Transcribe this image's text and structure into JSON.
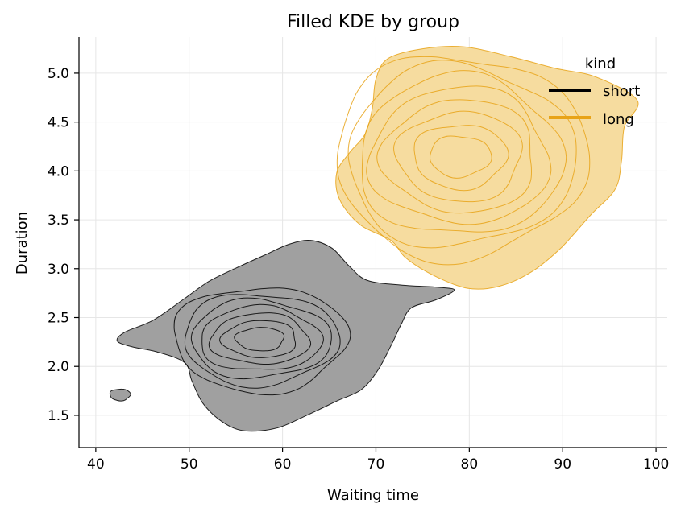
{
  "chart_data": {
    "type": "kde-contour",
    "title": "Filled KDE by group",
    "xlabel": "Waiting time",
    "ylabel": "Duration",
    "xlim": [
      38.2,
      101.2
    ],
    "ylim": [
      1.17,
      5.37
    ],
    "xticks": [
      40,
      50,
      60,
      70,
      80,
      90,
      100
    ],
    "yticks": [
      1.5,
      2.0,
      2.5,
      3.0,
      3.5,
      4.0,
      4.5,
      5.0
    ],
    "grid": true,
    "legend": {
      "title": "kind",
      "placement": "top-right"
    },
    "series": [
      {
        "name": "short",
        "color": "#000000",
        "fill": "#a0a0a0",
        "center": [
          57.6,
          2.28
        ],
        "outline": [
          [
            49.5,
            2.04
          ],
          [
            46.5,
            2.15
          ],
          [
            43.9,
            2.2
          ],
          [
            42.3,
            2.26
          ],
          [
            43.1,
            2.35
          ],
          [
            46.1,
            2.47
          ],
          [
            49.3,
            2.68
          ],
          [
            52.1,
            2.87
          ],
          [
            55.1,
            3.01
          ],
          [
            58.1,
            3.14
          ],
          [
            60.7,
            3.25
          ],
          [
            63.0,
            3.29
          ],
          [
            65.3,
            3.21
          ],
          [
            67.1,
            3.03
          ],
          [
            69.1,
            2.88
          ],
          [
            73.0,
            2.83
          ],
          [
            76.7,
            2.81
          ],
          [
            78.4,
            2.78
          ],
          [
            76.4,
            2.68
          ],
          [
            73.8,
            2.6
          ],
          [
            72.7,
            2.43
          ],
          [
            71.7,
            2.23
          ],
          [
            70.2,
            1.96
          ],
          [
            68.4,
            1.76
          ],
          [
            65.9,
            1.65
          ],
          [
            62.6,
            1.5
          ],
          [
            59.4,
            1.37
          ],
          [
            56.0,
            1.34
          ],
          [
            53.6,
            1.43
          ],
          [
            51.5,
            1.62
          ],
          [
            50.3,
            1.85
          ]
        ],
        "rings": [
          {
            "rx": 9.3,
            "ry": 0.54
          },
          {
            "rx": 8.3,
            "ry": 0.47
          },
          {
            "rx": 7.5,
            "ry": 0.4
          },
          {
            "rx": 6.5,
            "ry": 0.33
          },
          {
            "rx": 5.3,
            "ry": 0.26
          },
          {
            "rx": 4.0,
            "ry": 0.19
          },
          {
            "rx": 2.6,
            "ry": 0.12
          }
        ],
        "islands": [
          {
            "center": [
              42.6,
              1.71
            ],
            "rx": 1.1,
            "ry": 0.06
          }
        ]
      },
      {
        "name": "long",
        "color": "#e8a317",
        "fill": "#f6dc9f",
        "center": [
          79.0,
          4.15
        ],
        "outline": [
          [
            71.6,
            3.29
          ],
          [
            68.3,
            3.45
          ],
          [
            66.1,
            3.71
          ],
          [
            65.8,
            3.98
          ],
          [
            67.2,
            4.19
          ],
          [
            68.8,
            4.37
          ],
          [
            69.6,
            4.63
          ],
          [
            70.0,
            4.94
          ],
          [
            71.3,
            5.15
          ],
          [
            75.0,
            5.25
          ],
          [
            79.4,
            5.27
          ],
          [
            84.4,
            5.17
          ],
          [
            89.2,
            5.05
          ],
          [
            93.6,
            4.96
          ],
          [
            98.0,
            4.72
          ],
          [
            96.6,
            4.45
          ],
          [
            96.3,
            4.1
          ],
          [
            95.6,
            3.81
          ],
          [
            93.0,
            3.55
          ],
          [
            89.9,
            3.22
          ],
          [
            86.7,
            2.97
          ],
          [
            83.2,
            2.82
          ],
          [
            79.8,
            2.8
          ],
          [
            76.2,
            2.93
          ],
          [
            73.2,
            3.11
          ]
        ],
        "rings": [
          {
            "rx": 13.5,
            "ry": 1.04
          },
          {
            "rx": 12.2,
            "ry": 0.93
          },
          {
            "rx": 10.9,
            "ry": 0.82
          },
          {
            "rx": 9.6,
            "ry": 0.7
          },
          {
            "rx": 8.2,
            "ry": 0.58
          },
          {
            "rx": 6.7,
            "ry": 0.46
          },
          {
            "rx": 5.0,
            "ry": 0.33
          },
          {
            "rx": 3.3,
            "ry": 0.21
          }
        ],
        "islands": []
      }
    ]
  }
}
